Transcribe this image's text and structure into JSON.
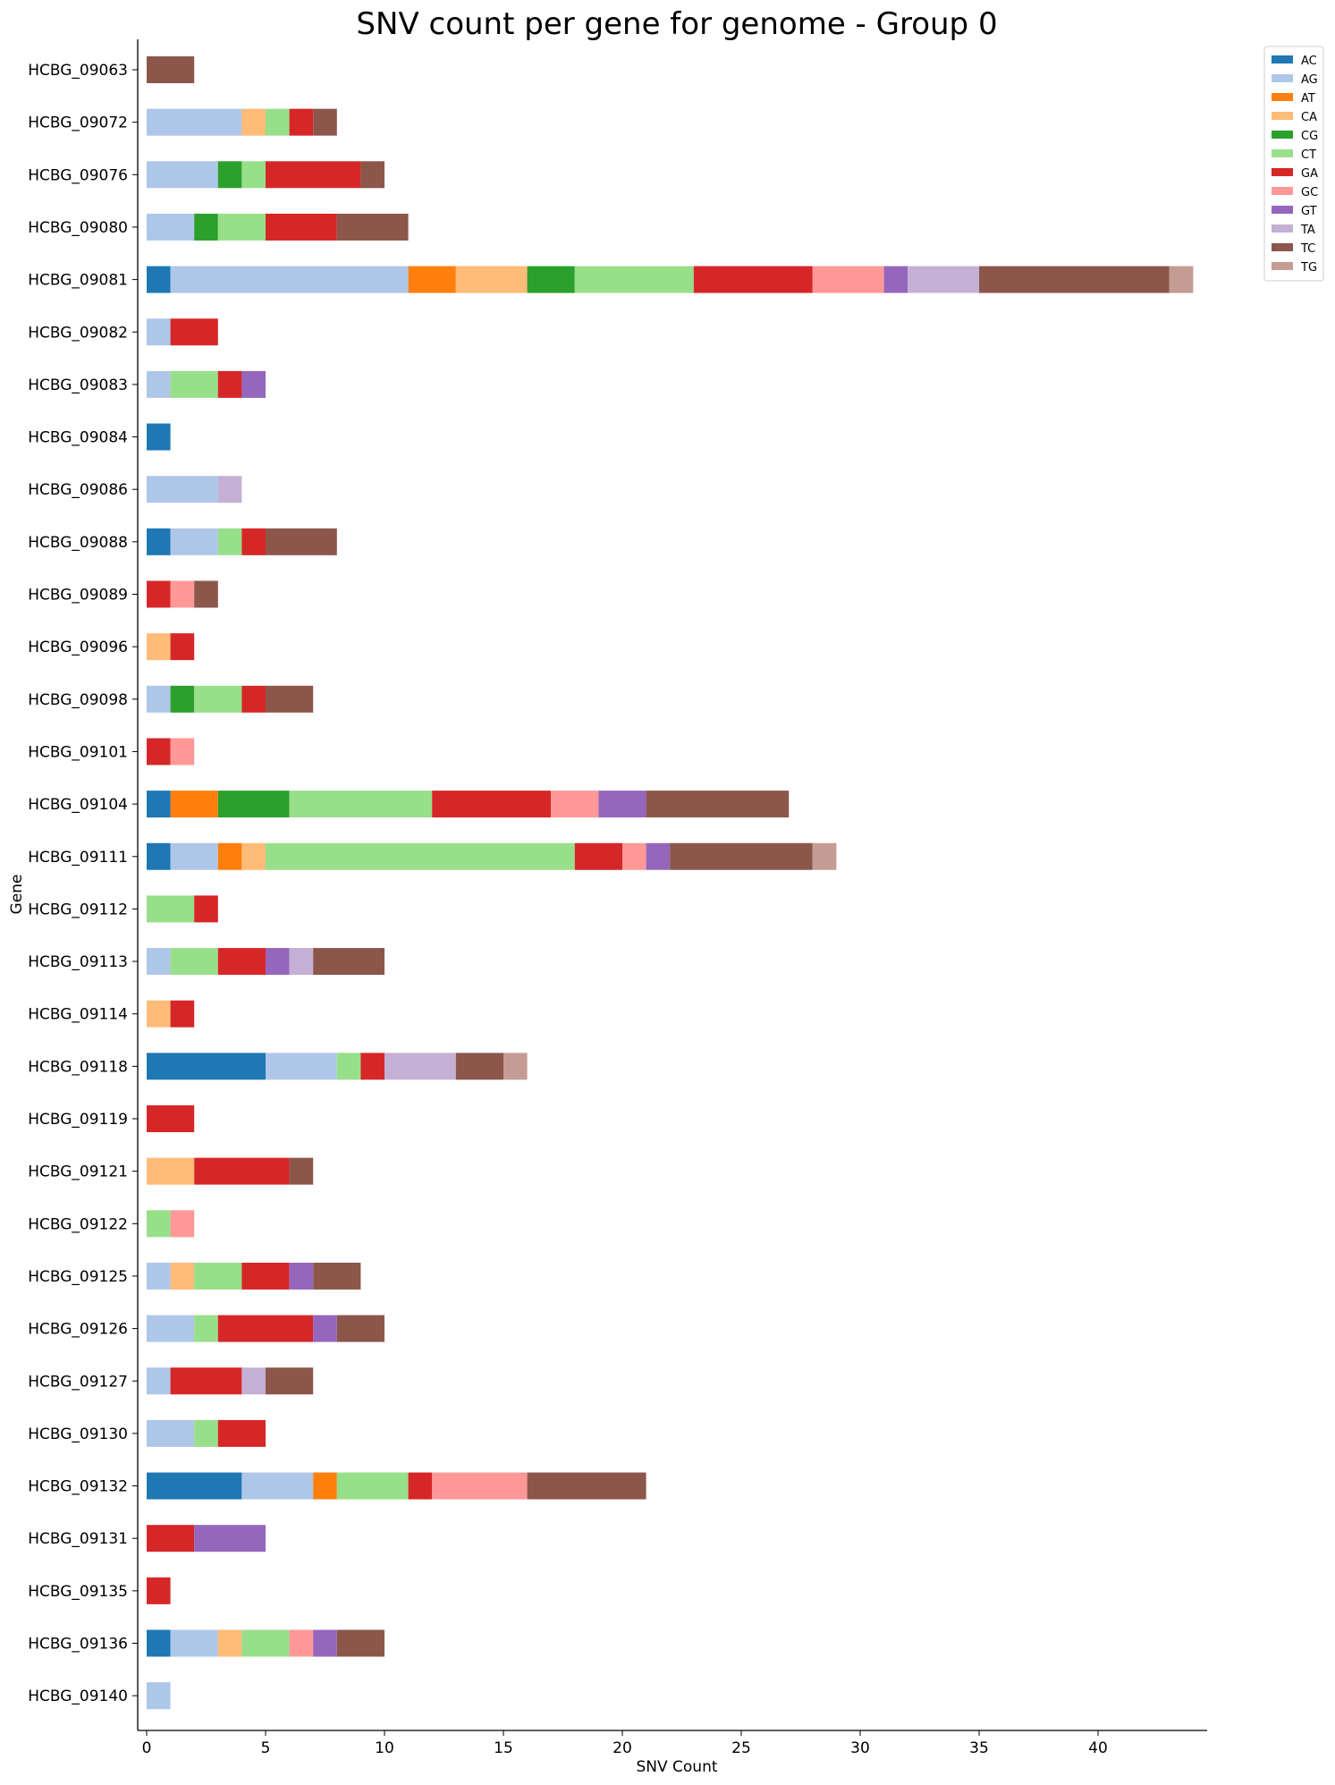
{
  "chart_data": {
    "type": "bar",
    "orientation": "horizontal",
    "stacked": true,
    "title": "SNV count per gene for genome - Group 0",
    "xlabel": "SNV Count",
    "ylabel": "Gene",
    "xlim": [
      0,
      44.4
    ],
    "xticks": [
      0,
      5,
      10,
      15,
      20,
      25,
      30,
      35,
      40
    ],
    "grid": false,
    "legend_position": "top-right, outside plot",
    "categories": [
      "HCBG_09063",
      "HCBG_09072",
      "HCBG_09076",
      "HCBG_09080",
      "HCBG_09081",
      "HCBG_09082",
      "HCBG_09083",
      "HCBG_09084",
      "HCBG_09086",
      "HCBG_09088",
      "HCBG_09089",
      "HCBG_09096",
      "HCBG_09098",
      "HCBG_09101",
      "HCBG_09104",
      "HCBG_09111",
      "HCBG_09112",
      "HCBG_09113",
      "HCBG_09114",
      "HCBG_09118",
      "HCBG_09119",
      "HCBG_09121",
      "HCBG_09122",
      "HCBG_09125",
      "HCBG_09126",
      "HCBG_09127",
      "HCBG_09130",
      "HCBG_09132",
      "HCBG_09131",
      "HCBG_09135",
      "HCBG_09136",
      "HCBG_09140"
    ],
    "series": [
      {
        "name": "AC",
        "color": "#1f77b4",
        "values": [
          0,
          0,
          0,
          0,
          1,
          0,
          0,
          1,
          0,
          1,
          0,
          0,
          0,
          0,
          1,
          1,
          0,
          0,
          0,
          5,
          0,
          0,
          0,
          0,
          0,
          0,
          0,
          4,
          0,
          0,
          1,
          0
        ]
      },
      {
        "name": "AG",
        "color": "#aec7e8",
        "values": [
          0,
          4,
          3,
          2,
          10,
          1,
          1,
          0,
          3,
          2,
          0,
          0,
          1,
          0,
          0,
          2,
          0,
          1,
          0,
          3,
          0,
          0,
          0,
          1,
          2,
          1,
          2,
          3,
          0,
          0,
          2,
          1
        ]
      },
      {
        "name": "AT",
        "color": "#ff7f0e",
        "values": [
          0,
          0,
          0,
          0,
          2,
          0,
          0,
          0,
          0,
          0,
          0,
          0,
          0,
          0,
          2,
          1,
          0,
          0,
          0,
          0,
          0,
          0,
          0,
          0,
          0,
          0,
          0,
          1,
          0,
          0,
          0,
          0
        ]
      },
      {
        "name": "CA",
        "color": "#ffbb78",
        "values": [
          0,
          1,
          0,
          0,
          3,
          0,
          0,
          0,
          0,
          0,
          0,
          1,
          0,
          0,
          0,
          1,
          0,
          0,
          1,
          0,
          0,
          2,
          0,
          1,
          0,
          0,
          0,
          0,
          0,
          0,
          1,
          0
        ]
      },
      {
        "name": "CG",
        "color": "#2ca02c",
        "values": [
          0,
          0,
          1,
          1,
          2,
          0,
          0,
          0,
          0,
          0,
          0,
          0,
          1,
          0,
          3,
          0,
          0,
          0,
          0,
          0,
          0,
          0,
          0,
          0,
          0,
          0,
          0,
          0,
          0,
          0,
          0,
          0
        ]
      },
      {
        "name": "CT",
        "color": "#98df8a",
        "values": [
          0,
          1,
          1,
          2,
          5,
          0,
          2,
          0,
          0,
          1,
          0,
          0,
          2,
          0,
          6,
          13,
          2,
          2,
          0,
          1,
          0,
          0,
          1,
          2,
          1,
          0,
          1,
          3,
          0,
          0,
          2,
          0
        ]
      },
      {
        "name": "GA",
        "color": "#d62728",
        "values": [
          0,
          1,
          4,
          3,
          5,
          2,
          1,
          0,
          0,
          1,
          1,
          1,
          1,
          1,
          5,
          2,
          1,
          2,
          1,
          1,
          2,
          4,
          0,
          2,
          4,
          3,
          2,
          1,
          2,
          1,
          0,
          0
        ]
      },
      {
        "name": "GC",
        "color": "#ff9896",
        "values": [
          0,
          0,
          0,
          0,
          3,
          0,
          0,
          0,
          0,
          0,
          1,
          0,
          0,
          1,
          2,
          1,
          0,
          0,
          0,
          0,
          0,
          0,
          1,
          0,
          0,
          0,
          0,
          4,
          0,
          0,
          1,
          0
        ]
      },
      {
        "name": "GT",
        "color": "#9467bd",
        "values": [
          0,
          0,
          0,
          0,
          1,
          0,
          1,
          0,
          0,
          0,
          0,
          0,
          0,
          0,
          2,
          1,
          0,
          1,
          0,
          0,
          0,
          0,
          0,
          1,
          1,
          0,
          0,
          0,
          3,
          0,
          1,
          0
        ]
      },
      {
        "name": "TA",
        "color": "#c5b0d5",
        "values": [
          0,
          0,
          0,
          0,
          3,
          0,
          0,
          0,
          1,
          0,
          0,
          0,
          0,
          0,
          0,
          0,
          0,
          1,
          0,
          3,
          0,
          0,
          0,
          0,
          0,
          1,
          0,
          0,
          0,
          0,
          0,
          0
        ]
      },
      {
        "name": "TC",
        "color": "#8c564b",
        "values": [
          2,
          1,
          1,
          3,
          8,
          0,
          0,
          0,
          0,
          3,
          1,
          0,
          2,
          0,
          6,
          6,
          0,
          3,
          0,
          2,
          0,
          1,
          0,
          2,
          2,
          2,
          0,
          5,
          0,
          0,
          2,
          0
        ]
      },
      {
        "name": "TG",
        "color": "#c49c94",
        "values": [
          0,
          0,
          0,
          0,
          1,
          0,
          0,
          0,
          0,
          0,
          0,
          0,
          0,
          0,
          0,
          1,
          0,
          0,
          0,
          1,
          0,
          0,
          0,
          0,
          0,
          0,
          0,
          0,
          0,
          0,
          0,
          0
        ]
      }
    ]
  }
}
